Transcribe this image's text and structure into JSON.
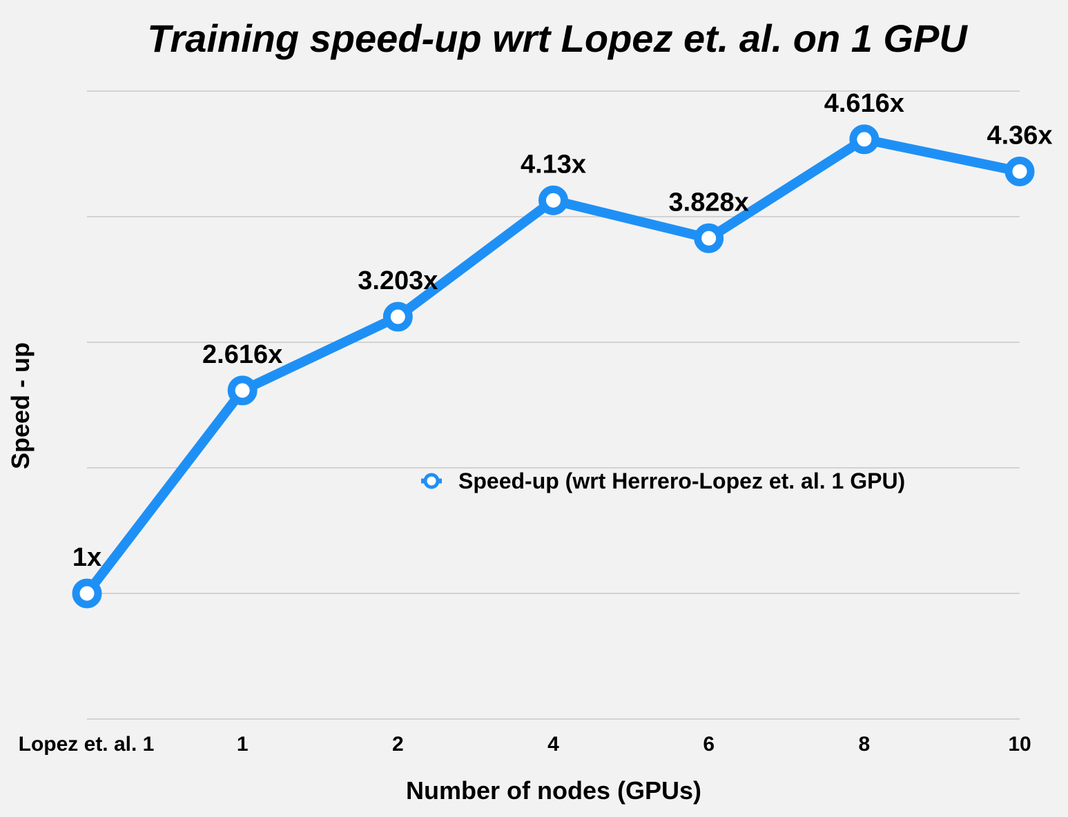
{
  "chart_data": {
    "type": "line",
    "title": "Training speed-up wrt Lopez et. al. on 1 GPU",
    "xlabel": "Number of nodes (GPUs)",
    "ylabel": "Speed - up",
    "categories": [
      "Lopez et. al. 1",
      "1",
      "2",
      "4",
      "6",
      "8",
      "10"
    ],
    "series": [
      {
        "name": "Speed-up (wrt Herrero-Lopez et. al. 1 GPU)",
        "values": [
          1,
          2.616,
          3.203,
          4.13,
          3.828,
          4.616,
          4.36
        ],
        "labels": [
          "1x",
          "2.616x",
          "3.203x",
          "4.13x",
          "3.828x",
          "4.616x",
          "4.36x"
        ],
        "color": "#1e90f5"
      }
    ],
    "ylim": [
      0,
      5
    ],
    "grid": true,
    "legend_position": "center-right"
  }
}
